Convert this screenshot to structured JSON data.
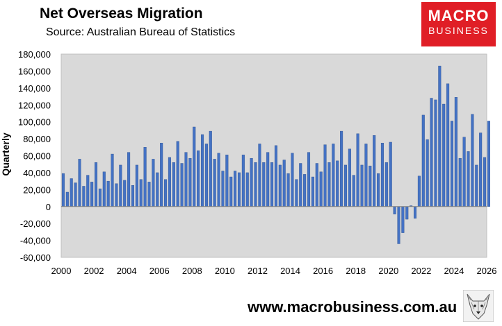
{
  "header": {
    "title": "Net Overseas Migration",
    "subtitle": "Source: Australian Bureau of Statistics"
  },
  "logo": {
    "line1": "MACRO",
    "line2": "BUSINESS",
    "color": "#e01e26"
  },
  "footer": {
    "url": "www.macrobusiness.com.au"
  },
  "chart_data": {
    "type": "bar",
    "ylabel": "Quarterly",
    "ylim": [
      -60000,
      180000
    ],
    "yticks": [
      -60000,
      -40000,
      -20000,
      0,
      20000,
      40000,
      60000,
      80000,
      100000,
      120000,
      140000,
      160000,
      180000
    ],
    "ytick_labels": [
      "-60,000",
      "-40,000",
      "-20,000",
      "0",
      "20,000",
      "40,000",
      "60,000",
      "80,000",
      "100,000",
      "120,000",
      "140,000",
      "160,000",
      "180,000"
    ],
    "xlim": [
      2000,
      2026
    ],
    "xticks": [
      2000,
      2002,
      2004,
      2006,
      2008,
      2010,
      2012,
      2014,
      2016,
      2018,
      2020,
      2022,
      2024,
      2026
    ],
    "xtick_labels": [
      "2000",
      "2002",
      "2004",
      "2006",
      "2008",
      "2010",
      "2012",
      "2014",
      "2016",
      "2018",
      "2020",
      "2022",
      "2024",
      "2026"
    ],
    "plot_background": "#d9d9d9",
    "bar_color": "#4472c4",
    "grid": false,
    "legend": "none",
    "frequency": "quarterly",
    "start": "2000 Q1",
    "values": [
      39000,
      17000,
      33000,
      28000,
      56000,
      24000,
      37000,
      29000,
      52000,
      21000,
      41000,
      30000,
      62000,
      27000,
      49000,
      31000,
      64000,
      25000,
      49000,
      32000,
      70000,
      29000,
      56000,
      40000,
      75000,
      32000,
      58000,
      52000,
      77000,
      51000,
      64000,
      57000,
      94000,
      66000,
      85000,
      74000,
      89000,
      56000,
      63000,
      42000,
      61000,
      35000,
      42000,
      40000,
      61000,
      40000,
      57000,
      52000,
      74000,
      52000,
      64000,
      52000,
      72000,
      49000,
      55000,
      39000,
      63000,
      32000,
      51000,
      38000,
      64000,
      35000,
      51000,
      41000,
      73000,
      52000,
      74000,
      54000,
      89000,
      49000,
      68000,
      37000,
      86000,
      49000,
      74000,
      48000,
      84000,
      39000,
      75000,
      52000,
      76000,
      -9000,
      -44000,
      -31000,
      -15000,
      1000,
      -14000,
      36000,
      108000,
      79000,
      128000,
      126000,
      166000,
      121000,
      145000,
      101000,
      129000,
      57000,
      82000,
      65000,
      109000,
      49000,
      87000,
      58000,
      101000
    ]
  }
}
